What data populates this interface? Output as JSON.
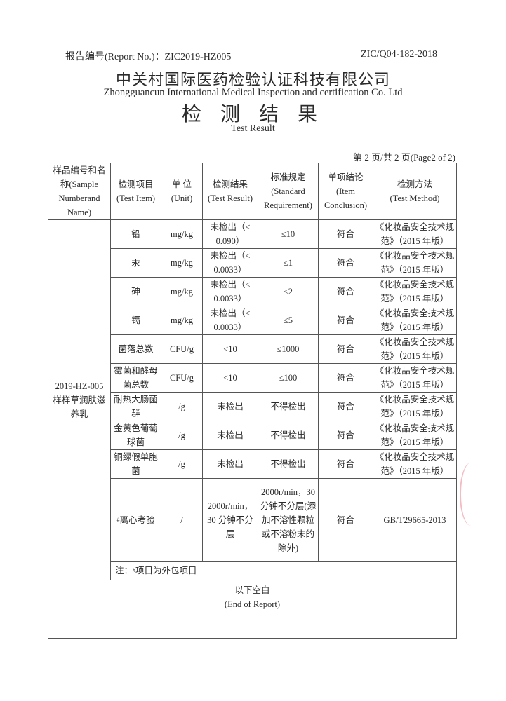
{
  "header": {
    "report_no": "报告编号(Report No.)：ZIC2019-HZ005",
    "form_code": "ZIC/Q04-182-2018",
    "company_cn": "中关村国际医药检验认证科技有限公司",
    "company_en": "Zhongguancun International Medical Inspection and certification Co. Ltd",
    "title_cn": "检 测 结 果",
    "title_en": "Test Result",
    "page": "第 2 页/共 2 页(Page2 of 2)"
  },
  "table": {
    "columns": [
      {
        "cn": "样品编号和名称(Sample",
        "en": "Numberand Name)"
      },
      {
        "cn": "检测项目",
        "en": "(Test Item)"
      },
      {
        "cn": "单 位",
        "en": "(Unit)"
      },
      {
        "cn": "检测结果",
        "en": "(Test Result)"
      },
      {
        "cn": "标准规定",
        "en": "(Standard Requirement)"
      },
      {
        "cn": "单项结论",
        "en": "(Item Conclusion)"
      },
      {
        "cn": "检测方法",
        "en": "(Test Method)"
      }
    ],
    "sample": "2019-HZ-005 样样草润肤滋养乳",
    "rows": [
      {
        "item": "铅",
        "unit": "mg/kg",
        "result": "未检出（< 0.090）",
        "standard": "≤10",
        "conclusion": "符合",
        "method": "《化妆品安全技术规范》（2015 年版）"
      },
      {
        "item": "汞",
        "unit": "mg/kg",
        "result": "未检出（< 0.0033）",
        "standard": "≤1",
        "conclusion": "符合",
        "method": "《化妆品安全技术规范》（2015 年版）"
      },
      {
        "item": "砷",
        "unit": "mg/kg",
        "result": "未检出（< 0.0033）",
        "standard": "≤2",
        "conclusion": "符合",
        "method": "《化妆品安全技术规范》（2015 年版）"
      },
      {
        "item": "镉",
        "unit": "mg/kg",
        "result": "未检出（< 0.0033）",
        "standard": "≤5",
        "conclusion": "符合",
        "method": "《化妆品安全技术规范》（2015 年版）"
      },
      {
        "item": "菌落总数",
        "unit": "CFU/g",
        "result": "<10",
        "standard": "≤1000",
        "conclusion": "符合",
        "method": "《化妆品安全技术规范》（2015 年版）"
      },
      {
        "item": "霉菌和酵母菌总数",
        "unit": "CFU/g",
        "result": "<10",
        "standard": "≤100",
        "conclusion": "符合",
        "method": "《化妆品安全技术规范》（2015 年版）"
      },
      {
        "item": "耐热大肠菌群",
        "unit": "/g",
        "result": "未检出",
        "standard": "不得检出",
        "conclusion": "符合",
        "method": "《化妆品安全技术规范》（2015 年版）"
      },
      {
        "item": "金黄色葡萄球菌",
        "unit": "/g",
        "result": "未检出",
        "standard": "不得检出",
        "conclusion": "符合",
        "method": "《化妆品安全技术规范》（2015 年版）"
      },
      {
        "item": "铜绿假单胞菌",
        "unit": "/g",
        "result": "未检出",
        "standard": "不得检出",
        "conclusion": "符合",
        "method": "《化妆品安全技术规范》（2015 年版）"
      }
    ],
    "centrifuge": {
      "mark": "#",
      "item": "离心考验",
      "unit": "/",
      "result": "2000r/min，30 分钟不分层",
      "standard": "2000r/min，30 分钟不分层(添加不溶性颗粒或不溶粉末的除外)",
      "conclusion": "符合",
      "method": "GB/T29665-2013"
    },
    "note": {
      "prefix": "注：",
      "mark": "#",
      "text": "项目为外包项目"
    },
    "end_cn": "以下空白",
    "end_en": "(End of Report)"
  }
}
